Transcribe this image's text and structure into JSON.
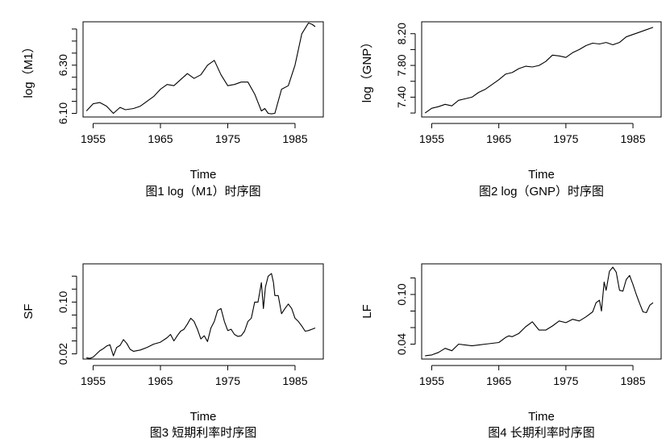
{
  "chart_data": [
    {
      "type": "line",
      "title": "图1 log（M1）时序图",
      "xlabel": "Time",
      "ylabel": "log（M1）",
      "xlim": [
        1953.5,
        1989.2
      ],
      "ylim": [
        6.085,
        6.48
      ],
      "xticks": [
        1955,
        1965,
        1975,
        1985
      ],
      "yticks_minor": [
        6.1,
        6.15,
        6.2,
        6.25,
        6.3,
        6.35,
        6.4,
        6.45
      ],
      "ytick_labels": [
        6.1,
        6.3
      ],
      "x": [
        1954.0,
        1955.0,
        1956.0,
        1957.0,
        1958.0,
        1959.0,
        1959.8,
        1961.0,
        1962.0,
        1963.0,
        1964.0,
        1965.0,
        1966.0,
        1967.0,
        1968.0,
        1969.0,
        1970.0,
        1971.0,
        1972.0,
        1973.0,
        1974.0,
        1975.0,
        1976.0,
        1977.0,
        1978.0,
        1979.0,
        1980.0,
        1980.5,
        1981.0,
        1981.5,
        1982.0,
        1983.0,
        1984.0,
        1985.0,
        1986.0,
        1987.0,
        1987.5,
        1988.0
      ],
      "y": [
        6.11,
        6.14,
        6.145,
        6.13,
        6.1,
        6.125,
        6.115,
        6.12,
        6.13,
        6.15,
        6.17,
        6.2,
        6.22,
        6.215,
        6.24,
        6.265,
        6.245,
        6.26,
        6.3,
        6.32,
        6.26,
        6.215,
        6.22,
        6.23,
        6.23,
        6.18,
        6.11,
        6.12,
        6.1,
        6.098,
        6.1,
        6.2,
        6.215,
        6.3,
        6.43,
        6.475,
        6.47,
        6.46
      ]
    },
    {
      "type": "line",
      "title": "图2 log（GNP）时序图",
      "xlabel": "Time",
      "ylabel": "log（GNP）",
      "xlim": [
        1953.5,
        1989.2
      ],
      "ylim": [
        7.15,
        8.35
      ],
      "xticks": [
        1955,
        1965,
        1975,
        1985
      ],
      "yticks_minor": [
        7.2,
        7.4,
        7.6,
        7.8,
        8.0,
        8.2
      ],
      "ytick_labels": [
        7.4,
        7.8,
        8.2
      ],
      "x": [
        1954.0,
        1955.0,
        1956.0,
        1957.0,
        1958.0,
        1959.0,
        1960.0,
        1961.0,
        1962.0,
        1963.0,
        1964.0,
        1965.0,
        1966.0,
        1967.0,
        1968.0,
        1969.0,
        1970.0,
        1971.0,
        1972.0,
        1973.0,
        1974.0,
        1975.0,
        1976.0,
        1977.0,
        1978.0,
        1979.0,
        1980.0,
        1981.0,
        1982.0,
        1983.0,
        1984.0,
        1985.0,
        1986.0,
        1987.0,
        1988.0
      ],
      "y": [
        7.2,
        7.26,
        7.28,
        7.31,
        7.29,
        7.36,
        7.38,
        7.4,
        7.46,
        7.5,
        7.56,
        7.62,
        7.69,
        7.71,
        7.76,
        7.79,
        7.78,
        7.8,
        7.85,
        7.93,
        7.92,
        7.9,
        7.96,
        8.0,
        8.05,
        8.08,
        8.07,
        8.09,
        8.06,
        8.09,
        8.16,
        8.19,
        8.22,
        8.25,
        8.28
      ]
    },
    {
      "type": "line",
      "title": "图3 短期利率时序图",
      "xlabel": "Time",
      "ylabel": "SF",
      "xlim": [
        1953.5,
        1989.2
      ],
      "ylim": [
        0.012,
        0.159
      ],
      "xticks": [
        1955,
        1965,
        1975,
        1985
      ],
      "yticks_minor": [
        0.02,
        0.04,
        0.06,
        0.08,
        0.1,
        0.12,
        0.14
      ],
      "ytick_labels": [
        0.02,
        0.1
      ],
      "x": [
        1954.0,
        1954.5,
        1955.0,
        1955.5,
        1956.0,
        1956.5,
        1957.0,
        1957.5,
        1958.0,
        1958.5,
        1959.0,
        1959.5,
        1960.0,
        1960.5,
        1961.0,
        1962.0,
        1963.0,
        1964.0,
        1965.0,
        1966.0,
        1966.5,
        1967.0,
        1967.5,
        1968.0,
        1968.5,
        1969.0,
        1969.5,
        1970.0,
        1970.5,
        1971.0,
        1971.5,
        1972.0,
        1972.5,
        1973.0,
        1973.5,
        1974.0,
        1974.5,
        1975.0,
        1975.5,
        1976.0,
        1976.5,
        1977.0,
        1977.5,
        1978.0,
        1978.5,
        1979.0,
        1979.5,
        1980.0,
        1980.3,
        1980.6,
        1981.0,
        1981.5,
        1981.8,
        1982.0,
        1982.5,
        1983.0,
        1983.5,
        1984.0,
        1984.5,
        1985.0,
        1985.5,
        1986.0,
        1986.5,
        1987.0,
        1987.5,
        1988.0
      ],
      "y": [
        0.014,
        0.013,
        0.015,
        0.02,
        0.025,
        0.028,
        0.032,
        0.034,
        0.017,
        0.03,
        0.033,
        0.042,
        0.036,
        0.027,
        0.024,
        0.026,
        0.03,
        0.035,
        0.038,
        0.045,
        0.05,
        0.04,
        0.048,
        0.055,
        0.058,
        0.066,
        0.075,
        0.07,
        0.058,
        0.043,
        0.048,
        0.039,
        0.06,
        0.07,
        0.087,
        0.09,
        0.07,
        0.056,
        0.058,
        0.05,
        0.047,
        0.048,
        0.055,
        0.07,
        0.075,
        0.1,
        0.1,
        0.13,
        0.09,
        0.123,
        0.14,
        0.144,
        0.13,
        0.11,
        0.11,
        0.082,
        0.09,
        0.097,
        0.09,
        0.075,
        0.07,
        0.063,
        0.055,
        0.056,
        0.058,
        0.06
      ]
    },
    {
      "type": "line",
      "title": "图4 长期利率时序图",
      "xlabel": "Time",
      "ylabel": "LF",
      "xlim": [
        1953.5,
        1989.2
      ],
      "ylim": [
        0.022,
        0.137
      ],
      "xticks": [
        1955,
        1965,
        1975,
        1985
      ],
      "yticks_minor": [
        0.04,
        0.06,
        0.08,
        0.1,
        0.12
      ],
      "ytick_labels": [
        0.04,
        0.1
      ],
      "x": [
        1954.0,
        1955.0,
        1956.0,
        1957.0,
        1958.0,
        1959.0,
        1960.0,
        1961.0,
        1962.0,
        1963.0,
        1964.0,
        1965.0,
        1966.0,
        1966.5,
        1967.0,
        1968.0,
        1969.0,
        1970.0,
        1970.5,
        1971.0,
        1972.0,
        1973.0,
        1974.0,
        1975.0,
        1976.0,
        1977.0,
        1978.0,
        1979.0,
        1979.5,
        1980.0,
        1980.3,
        1980.7,
        1981.0,
        1981.5,
        1982.0,
        1982.5,
        1983.0,
        1983.5,
        1984.0,
        1984.5,
        1985.0,
        1985.5,
        1986.0,
        1986.5,
        1987.0,
        1987.5,
        1988.0
      ],
      "y": [
        0.026,
        0.027,
        0.03,
        0.035,
        0.032,
        0.04,
        0.039,
        0.038,
        0.039,
        0.04,
        0.041,
        0.042,
        0.048,
        0.05,
        0.049,
        0.053,
        0.061,
        0.067,
        0.062,
        0.057,
        0.057,
        0.062,
        0.068,
        0.066,
        0.07,
        0.068,
        0.073,
        0.079,
        0.09,
        0.093,
        0.08,
        0.115,
        0.105,
        0.128,
        0.133,
        0.127,
        0.105,
        0.104,
        0.118,
        0.123,
        0.112,
        0.1,
        0.089,
        0.079,
        0.078,
        0.087,
        0.09
      ]
    }
  ]
}
